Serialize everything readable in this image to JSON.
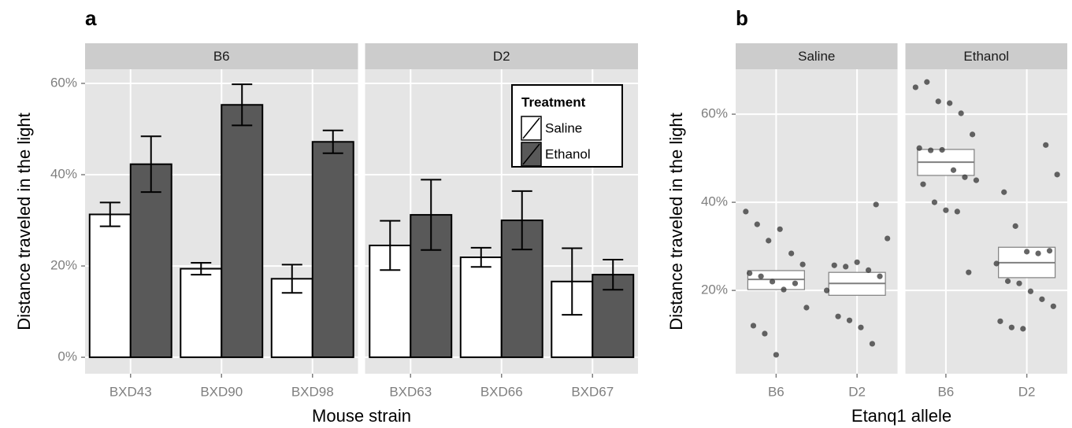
{
  "chart_data": [
    {
      "type": "bar",
      "panel_label": "a",
      "x_label": "Mouse strain",
      "y_label": "Distance traveled in the light",
      "ylim": [
        -3.6,
        63.1
      ],
      "yticks": [
        {
          "value": 0,
          "label": "0%"
        },
        {
          "value": 20,
          "label": "20%"
        },
        {
          "value": 40,
          "label": "40%"
        },
        {
          "value": 60,
          "label": "60%"
        }
      ],
      "grid": true,
      "legend_title": "Treatment",
      "series": [
        {
          "name": "Saline",
          "color": "#ffffff"
        },
        {
          "name": "Ethanol",
          "color": "#595959"
        }
      ],
      "facets": [
        {
          "label": "B6",
          "categories": [
            "BXD43",
            "BXD90",
            "BXD98"
          ],
          "series": [
            {
              "values": [
                31.3,
                19.4,
                17.2
              ],
              "errors": [
                2.6,
                1.3,
                3.1
              ]
            },
            {
              "values": [
                42.3,
                55.3,
                47.2
              ],
              "errors": [
                6.1,
                4.5,
                2.5
              ]
            }
          ]
        },
        {
          "label": "D2",
          "categories": [
            "BXD63",
            "BXD66",
            "BXD67"
          ],
          "series": [
            {
              "values": [
                24.5,
                21.9,
                16.6
              ],
              "errors": [
                5.4,
                2.1,
                7.3
              ]
            },
            {
              "values": [
                31.2,
                30.0,
                18.1
              ],
              "errors": [
                7.7,
                6.4,
                3.3
              ]
            }
          ]
        }
      ]
    },
    {
      "type": "box",
      "panel_label": "b",
      "x_label": "Etanq1 allele",
      "y_label": "Distance traveled in the light",
      "ylim": [
        1.1,
        70.2
      ],
      "yticks": [
        {
          "value": 20,
          "label": "20%"
        },
        {
          "value": 40,
          "label": "40%"
        },
        {
          "value": 60,
          "label": "60%"
        }
      ],
      "grid": true,
      "point_color": "#333333",
      "facets": [
        {
          "label": "Saline",
          "categories": [
            "B6",
            "D2"
          ],
          "groups": [
            {
              "q1": 20.2,
              "median": 22.5,
              "q3": 24.5,
              "points": [
                37.9,
                35,
                31.3,
                33.9,
                28.4,
                25.9,
                23.9,
                23.2,
                22,
                20.2,
                21.6,
                16.1,
                12,
                10.2,
                5.4
              ]
            },
            {
              "q1": 18.9,
              "median": 21.6,
              "q3": 24.1,
              "points": [
                39.5,
                31.8,
                25.7,
                25.4,
                26.4,
                24.6,
                23.2,
                20,
                14.1,
                13.2,
                11.6,
                7.9
              ]
            }
          ]
        },
        {
          "label": "Ethanol",
          "categories": [
            "B6",
            "D2"
          ],
          "groups": [
            {
              "q1": 46.1,
              "median": 49.1,
              "q3": 52,
              "points": [
                66.1,
                67.3,
                62.9,
                62.5,
                60.2,
                55.4,
                52.3,
                51.8,
                51.9,
                47.3,
                45.7,
                45,
                44.1,
                40,
                38.2,
                37.9,
                24.1
              ]
            },
            {
              "q1": 22.9,
              "median": 26.3,
              "q3": 29.8,
              "points": [
                53,
                46.3,
                42.3,
                34.6,
                28.8,
                28.4,
                29,
                26.1,
                22.1,
                21.6,
                19.8,
                18,
                16.4,
                13,
                11.6,
                11.3
              ]
            }
          ]
        }
      ]
    }
  ]
}
